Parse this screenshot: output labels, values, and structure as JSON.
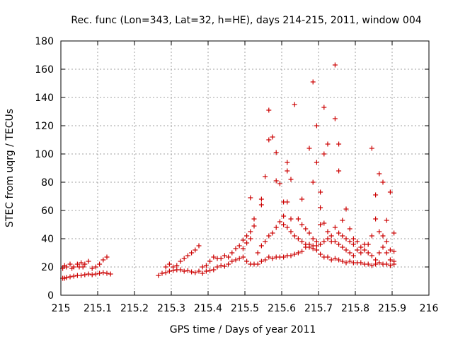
{
  "chart_data": {
    "type": "scatter",
    "title": "Rec. func (Lon=343, Lat=32, h=HE), days 214-215, 2011, window 004",
    "xlabel": "GPS time / Days of year 2011",
    "ylabel": "STEC from uqrg / TECUs",
    "xlim": [
      215,
      216
    ],
    "ylim": [
      0,
      180
    ],
    "xticks": [
      "215",
      "215.1",
      "215.2",
      "215.3",
      "215.4",
      "215.5",
      "215.6",
      "215.7",
      "215.8",
      "215.9",
      "216"
    ],
    "yticks": [
      "0",
      "20",
      "40",
      "60",
      "80",
      "100",
      "120",
      "140",
      "160",
      "180"
    ],
    "grid": true,
    "marker": "plus",
    "color": "#cc0000",
    "points": [
      [
        215.005,
        12
      ],
      [
        215.01,
        12
      ],
      [
        215.015,
        12.5
      ],
      [
        215.025,
        13
      ],
      [
        215.035,
        13.5
      ],
      [
        215.045,
        14
      ],
      [
        215.055,
        14
      ],
      [
        215.065,
        14.5
      ],
      [
        215.075,
        15
      ],
      [
        215.085,
        14.5
      ],
      [
        215.095,
        15
      ],
      [
        215.105,
        15.5
      ],
      [
        215.115,
        16
      ],
      [
        215.125,
        15.5
      ],
      [
        215.135,
        15
      ],
      [
        215.005,
        19
      ],
      [
        215.01,
        21
      ],
      [
        215.015,
        20
      ],
      [
        215.025,
        22
      ],
      [
        215.03,
        19
      ],
      [
        215.035,
        20
      ],
      [
        215.045,
        22
      ],
      [
        215.05,
        20
      ],
      [
        215.055,
        23
      ],
      [
        215.06,
        20
      ],
      [
        215.065,
        22
      ],
      [
        215.075,
        24
      ],
      [
        215.085,
        19
      ],
      [
        215.095,
        20
      ],
      [
        215.105,
        22
      ],
      [
        215.115,
        25
      ],
      [
        215.125,
        27
      ],
      [
        215.265,
        14
      ],
      [
        215.275,
        15.5
      ],
      [
        215.285,
        16
      ],
      [
        215.295,
        17
      ],
      [
        215.305,
        17.5
      ],
      [
        215.315,
        18
      ],
      [
        215.325,
        18
      ],
      [
        215.335,
        17
      ],
      [
        215.345,
        17.5
      ],
      [
        215.355,
        16.5
      ],
      [
        215.365,
        16
      ],
      [
        215.375,
        17
      ],
      [
        215.385,
        15.5
      ],
      [
        215.395,
        17
      ],
      [
        215.405,
        17.5
      ],
      [
        215.415,
        18
      ],
      [
        215.425,
        20
      ],
      [
        215.435,
        21
      ],
      [
        215.445,
        20.5
      ],
      [
        215.455,
        22
      ],
      [
        215.465,
        24
      ],
      [
        215.475,
        25
      ],
      [
        215.485,
        26
      ],
      [
        215.495,
        27
      ],
      [
        215.505,
        24
      ],
      [
        215.515,
        22
      ],
      [
        215.525,
        22
      ],
      [
        215.535,
        22
      ],
      [
        215.545,
        24
      ],
      [
        215.555,
        25
      ],
      [
        215.565,
        27
      ],
      [
        215.575,
        26
      ],
      [
        215.585,
        27
      ],
      [
        215.595,
        27
      ],
      [
        215.605,
        27
      ],
      [
        215.615,
        28
      ],
      [
        215.625,
        28
      ],
      [
        215.635,
        29
      ],
      [
        215.645,
        30
      ],
      [
        215.655,
        31
      ],
      [
        215.665,
        34
      ],
      [
        215.675,
        36
      ],
      [
        215.685,
        35
      ],
      [
        215.695,
        32
      ],
      [
        215.705,
        29
      ],
      [
        215.715,
        27
      ],
      [
        215.725,
        27
      ],
      [
        215.735,
        25
      ],
      [
        215.745,
        26
      ],
      [
        215.755,
        25
      ],
      [
        215.765,
        24
      ],
      [
        215.775,
        23
      ],
      [
        215.785,
        24
      ],
      [
        215.795,
        23
      ],
      [
        215.805,
        23
      ],
      [
        215.815,
        23
      ],
      [
        215.825,
        22
      ],
      [
        215.835,
        22
      ],
      [
        215.845,
        21
      ],
      [
        215.855,
        22
      ],
      [
        215.865,
        23
      ],
      [
        215.875,
        22
      ],
      [
        215.885,
        22
      ],
      [
        215.895,
        21
      ],
      [
        215.905,
        22
      ],
      [
        215.285,
        20
      ],
      [
        215.295,
        22
      ],
      [
        215.305,
        20
      ],
      [
        215.315,
        21
      ],
      [
        215.325,
        24
      ],
      [
        215.335,
        26
      ],
      [
        215.345,
        28
      ],
      [
        215.355,
        30
      ],
      [
        215.365,
        32
      ],
      [
        215.375,
        35
      ],
      [
        215.385,
        20
      ],
      [
        215.395,
        21
      ],
      [
        215.405,
        24
      ],
      [
        215.415,
        27
      ],
      [
        215.425,
        26
      ],
      [
        215.435,
        26
      ],
      [
        215.445,
        28
      ],
      [
        215.455,
        27
      ],
      [
        215.465,
        30
      ],
      [
        215.475,
        33
      ],
      [
        215.485,
        35
      ],
      [
        215.495,
        39
      ],
      [
        215.505,
        42
      ],
      [
        215.515,
        45
      ],
      [
        215.495,
        33
      ],
      [
        215.505,
        37
      ],
      [
        215.515,
        40
      ],
      [
        215.525,
        49
      ],
      [
        215.525,
        54
      ],
      [
        215.515,
        69
      ],
      [
        215.545,
        64
      ],
      [
        215.545,
        68
      ],
      [
        215.555,
        84
      ],
      [
        215.565,
        110
      ],
      [
        215.565,
        131
      ],
      [
        215.575,
        112
      ],
      [
        215.585,
        101
      ],
      [
        215.585,
        81
      ],
      [
        215.595,
        79
      ],
      [
        215.605,
        66
      ],
      [
        215.605,
        56
      ],
      [
        215.615,
        66
      ],
      [
        215.615,
        88
      ],
      [
        215.615,
        94
      ],
      [
        215.625,
        54
      ],
      [
        215.625,
        82
      ],
      [
        215.635,
        135
      ],
      [
        215.645,
        54
      ],
      [
        215.655,
        68
      ],
      [
        215.655,
        50
      ],
      [
        215.675,
        104
      ],
      [
        215.685,
        80
      ],
      [
        215.685,
        151
      ],
      [
        215.695,
        94
      ],
      [
        215.695,
        120
      ],
      [
        215.705,
        62
      ],
      [
        215.705,
        73
      ],
      [
        215.715,
        100
      ],
      [
        215.715,
        133
      ],
      [
        215.725,
        107
      ],
      [
        215.745,
        125
      ],
      [
        215.745,
        163
      ],
      [
        215.755,
        107
      ],
      [
        215.755,
        88
      ],
      [
        215.765,
        53
      ],
      [
        215.775,
        61
      ],
      [
        215.785,
        47
      ],
      [
        215.795,
        40
      ],
      [
        215.845,
        104
      ],
      [
        215.855,
        71
      ],
      [
        215.865,
        86
      ],
      [
        215.875,
        80
      ],
      [
        215.885,
        53
      ],
      [
        215.895,
        73
      ],
      [
        215.905,
        44
      ],
      [
        215.535,
        30
      ],
      [
        215.545,
        35
      ],
      [
        215.555,
        38
      ],
      [
        215.565,
        42
      ],
      [
        215.575,
        44
      ],
      [
        215.585,
        48
      ],
      [
        215.595,
        52
      ],
      [
        215.605,
        50
      ],
      [
        215.615,
        48
      ],
      [
        215.625,
        45
      ],
      [
        215.635,
        42
      ],
      [
        215.645,
        40
      ],
      [
        215.655,
        38
      ],
      [
        215.665,
        36
      ],
      [
        215.675,
        34
      ],
      [
        215.685,
        33
      ],
      [
        215.695,
        35
      ],
      [
        215.705,
        36
      ],
      [
        215.715,
        38
      ],
      [
        215.725,
        40
      ],
      [
        215.735,
        42
      ],
      [
        215.745,
        38
      ],
      [
        215.755,
        36
      ],
      [
        215.765,
        34
      ],
      [
        215.775,
        32
      ],
      [
        215.785,
        30
      ],
      [
        215.795,
        28
      ],
      [
        215.805,
        32
      ],
      [
        215.815,
        30
      ],
      [
        215.825,
        36
      ],
      [
        215.835,
        30
      ],
      [
        215.845,
        28
      ],
      [
        215.855,
        25
      ],
      [
        215.865,
        30
      ],
      [
        215.875,
        34
      ],
      [
        215.885,
        38
      ],
      [
        215.895,
        32
      ],
      [
        215.905,
        31
      ],
      [
        215.665,
        47
      ],
      [
        215.675,
        44
      ],
      [
        215.685,
        40
      ],
      [
        215.695,
        38
      ],
      [
        215.705,
        50
      ],
      [
        215.715,
        51
      ],
      [
        215.725,
        45
      ],
      [
        215.735,
        38
      ],
      [
        215.745,
        48
      ],
      [
        215.755,
        44
      ],
      [
        215.765,
        42
      ],
      [
        215.775,
        40
      ],
      [
        215.785,
        38
      ],
      [
        215.795,
        36
      ],
      [
        215.805,
        38
      ],
      [
        215.815,
        34
      ],
      [
        215.825,
        32
      ],
      [
        215.835,
        36
      ],
      [
        215.845,
        42
      ],
      [
        215.855,
        54
      ],
      [
        215.865,
        45
      ],
      [
        215.875,
        42
      ],
      [
        215.885,
        30
      ],
      [
        215.895,
        25
      ],
      [
        215.905,
        24
      ]
    ]
  }
}
